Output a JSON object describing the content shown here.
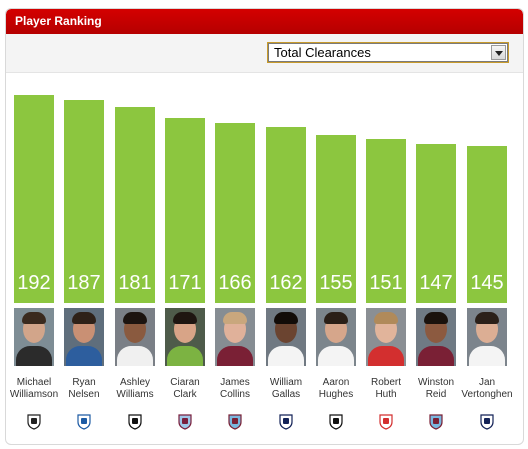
{
  "widget": {
    "title": "Player Ranking"
  },
  "metric_select": {
    "selected": "Total Clearances"
  },
  "chart_data": {
    "type": "bar",
    "categories": [
      "Michael Williamson",
      "Ryan Nelsen",
      "Ashley Williams",
      "Ciaran Clark",
      "James Collins",
      "William Gallas",
      "Aaron Hughes",
      "Robert Huth",
      "Winston Reid",
      "Jan Vertonghen"
    ],
    "values": [
      192,
      187,
      181,
      171,
      166,
      162,
      155,
      151,
      147,
      145
    ],
    "ylim": [
      0,
      200
    ]
  },
  "players": [
    {
      "first": "Michael",
      "last": "Williamson",
      "value": "192",
      "club_icon": "newcastle-crest-icon",
      "bg": "#7e8d95",
      "skin": "#d2a58a",
      "hair": "#3a2a1e",
      "shirt": "#2b2b2b",
      "crest_main": "#222222",
      "crest_alt": "#ffffff"
    },
    {
      "first": "Ryan",
      "last": "Nelsen",
      "value": "187",
      "club_icon": "qpr-crest-icon",
      "bg": "#5f6e7c",
      "skin": "#c99074",
      "hair": "#2e2118",
      "shirt": "#2d5e9e",
      "crest_main": "#1d5ba4",
      "crest_alt": "#ffffff"
    },
    {
      "first": "Ashley",
      "last": "Williams",
      "value": "181",
      "club_icon": "swansea-crest-icon",
      "bg": "#7a7f86",
      "skin": "#8a5a3f",
      "hair": "#1c1410",
      "shirt": "#f0f0f0",
      "crest_main": "#111111",
      "crest_alt": "#ffffff"
    },
    {
      "first": "Ciaran",
      "last": "Clark",
      "value": "171",
      "club_icon": "aston-villa-crest-icon",
      "bg": "#4e5b4a",
      "skin": "#d8a487",
      "hair": "#1e1611",
      "shirt": "#7cb342",
      "crest_main": "#7a1f3d",
      "crest_alt": "#9fc7e8"
    },
    {
      "first": "James",
      "last": "Collins",
      "value": "166",
      "club_icon": "west-ham-crest-icon",
      "bg": "#868d93",
      "skin": "#e0b19a",
      "hair": "#c9a77d",
      "shirt": "#7a2035",
      "crest_main": "#7a2035",
      "crest_alt": "#7ab8df"
    },
    {
      "first": "William",
      "last": "Gallas",
      "value": "162",
      "club_icon": "tottenham-crest-icon",
      "bg": "#707982",
      "skin": "#6b4430",
      "hair": "#120c08",
      "shirt": "#f4f4f4",
      "crest_main": "#132257",
      "crest_alt": "#ffffff"
    },
    {
      "first": "Aaron",
      "last": "Hughes",
      "value": "155",
      "club_icon": "fulham-crest-icon",
      "bg": "#7c858c",
      "skin": "#d6a68b",
      "hair": "#2a1f17",
      "shirt": "#f4f4f4",
      "crest_main": "#111111",
      "crest_alt": "#ffffff"
    },
    {
      "first": "Robert",
      "last": "Huth",
      "value": "151",
      "club_icon": "stoke-crest-icon",
      "bg": "#8a8f94",
      "skin": "#e1b49b",
      "hair": "#b08a5a",
      "shirt": "#d32f2f",
      "crest_main": "#d32f2f",
      "crest_alt": "#ffffff"
    },
    {
      "first": "Winston",
      "last": "Reid",
      "value": "147",
      "club_icon": "west-ham-crest-icon",
      "bg": "#6f7a84",
      "skin": "#8c5a40",
      "hair": "#1a120d",
      "shirt": "#7a2035",
      "crest_main": "#7a2035",
      "crest_alt": "#7ab8df"
    },
    {
      "first": "Jan",
      "last": "Vertonghen",
      "value": "145",
      "club_icon": "tottenham-crest-icon",
      "bg": "#7c848c",
      "skin": "#dcae94",
      "hair": "#2b2019",
      "shirt": "#f4f4f4",
      "crest_main": "#132257",
      "crest_alt": "#ffffff"
    }
  ],
  "colors": {
    "header": "#c80000",
    "bar": "#8cc63f",
    "bar_text": "#ffffff"
  }
}
